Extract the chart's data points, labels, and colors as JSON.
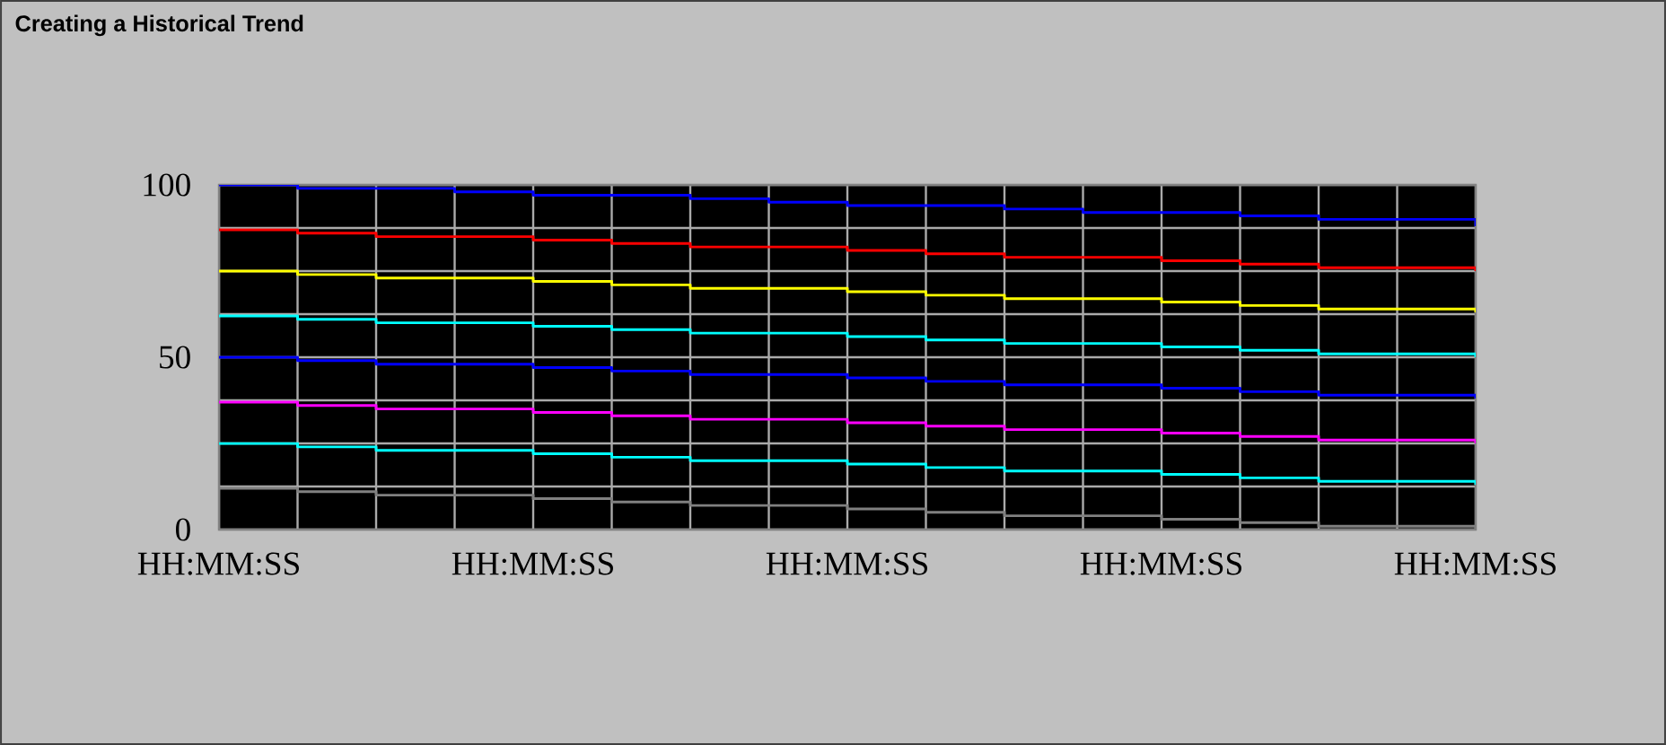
{
  "chart_data": {
    "type": "step",
    "title": "Creating a Historical Trend",
    "categories": [
      "HH:MM:SS",
      null,
      null,
      null,
      "HH:MM:SS",
      null,
      null,
      null,
      "HH:MM:SS",
      null,
      null,
      null,
      "HH:MM:SS",
      null,
      null,
      null,
      "HH:MM:SS"
    ],
    "ylim": [
      0,
      100
    ],
    "yticks": [
      0,
      {
        "value": 12.5,
        "label": null
      },
      {
        "value": 25,
        "label": null
      },
      {
        "value": 37.5,
        "label": null
      },
      50,
      {
        "value": 62.5,
        "label": null
      },
      {
        "value": 75,
        "label": null
      },
      {
        "value": 87.5,
        "label": null
      },
      100
    ],
    "grid": true,
    "marker": "none",
    "line_style": "solid",
    "series": [
      {
        "color": "#0000ff",
        "values": [
          100,
          99,
          99,
          98,
          97,
          97,
          96,
          95,
          94,
          94,
          93,
          92,
          92,
          91,
          90,
          90,
          88
        ]
      },
      {
        "color": "#ff0000",
        "values": [
          87,
          86,
          85,
          85,
          84,
          83,
          82,
          82,
          81,
          80,
          79,
          79,
          78,
          77,
          76,
          76,
          75
        ]
      },
      {
        "color": "#ffff00",
        "values": [
          75,
          74,
          73,
          73,
          72,
          71,
          70,
          70,
          69,
          68,
          67,
          67,
          66,
          65,
          64,
          64,
          63
        ]
      },
      {
        "color": "#00ffff",
        "values": [
          62,
          61,
          60,
          60,
          59,
          58,
          57,
          57,
          56,
          55,
          54,
          54,
          53,
          52,
          51,
          51,
          50
        ]
      },
      {
        "color": "#0000ff",
        "values": [
          50,
          49,
          48,
          48,
          47,
          46,
          45,
          45,
          44,
          43,
          42,
          42,
          41,
          40,
          39,
          39,
          38
        ]
      },
      {
        "color": "#ff00ff",
        "values": [
          37,
          36,
          35,
          35,
          34,
          33,
          32,
          32,
          31,
          30,
          29,
          29,
          28,
          27,
          26,
          26,
          25
        ]
      },
      {
        "color": "#00ffff",
        "values": [
          25,
          24,
          23,
          23,
          22,
          21,
          20,
          20,
          19,
          18,
          17,
          17,
          16,
          15,
          14,
          14,
          13
        ]
      },
      {
        "color": "#808080",
        "values": [
          12,
          11,
          10,
          10,
          9,
          8,
          7,
          7,
          6,
          5,
          4,
          4,
          3,
          2,
          1,
          1,
          0
        ]
      }
    ]
  }
}
